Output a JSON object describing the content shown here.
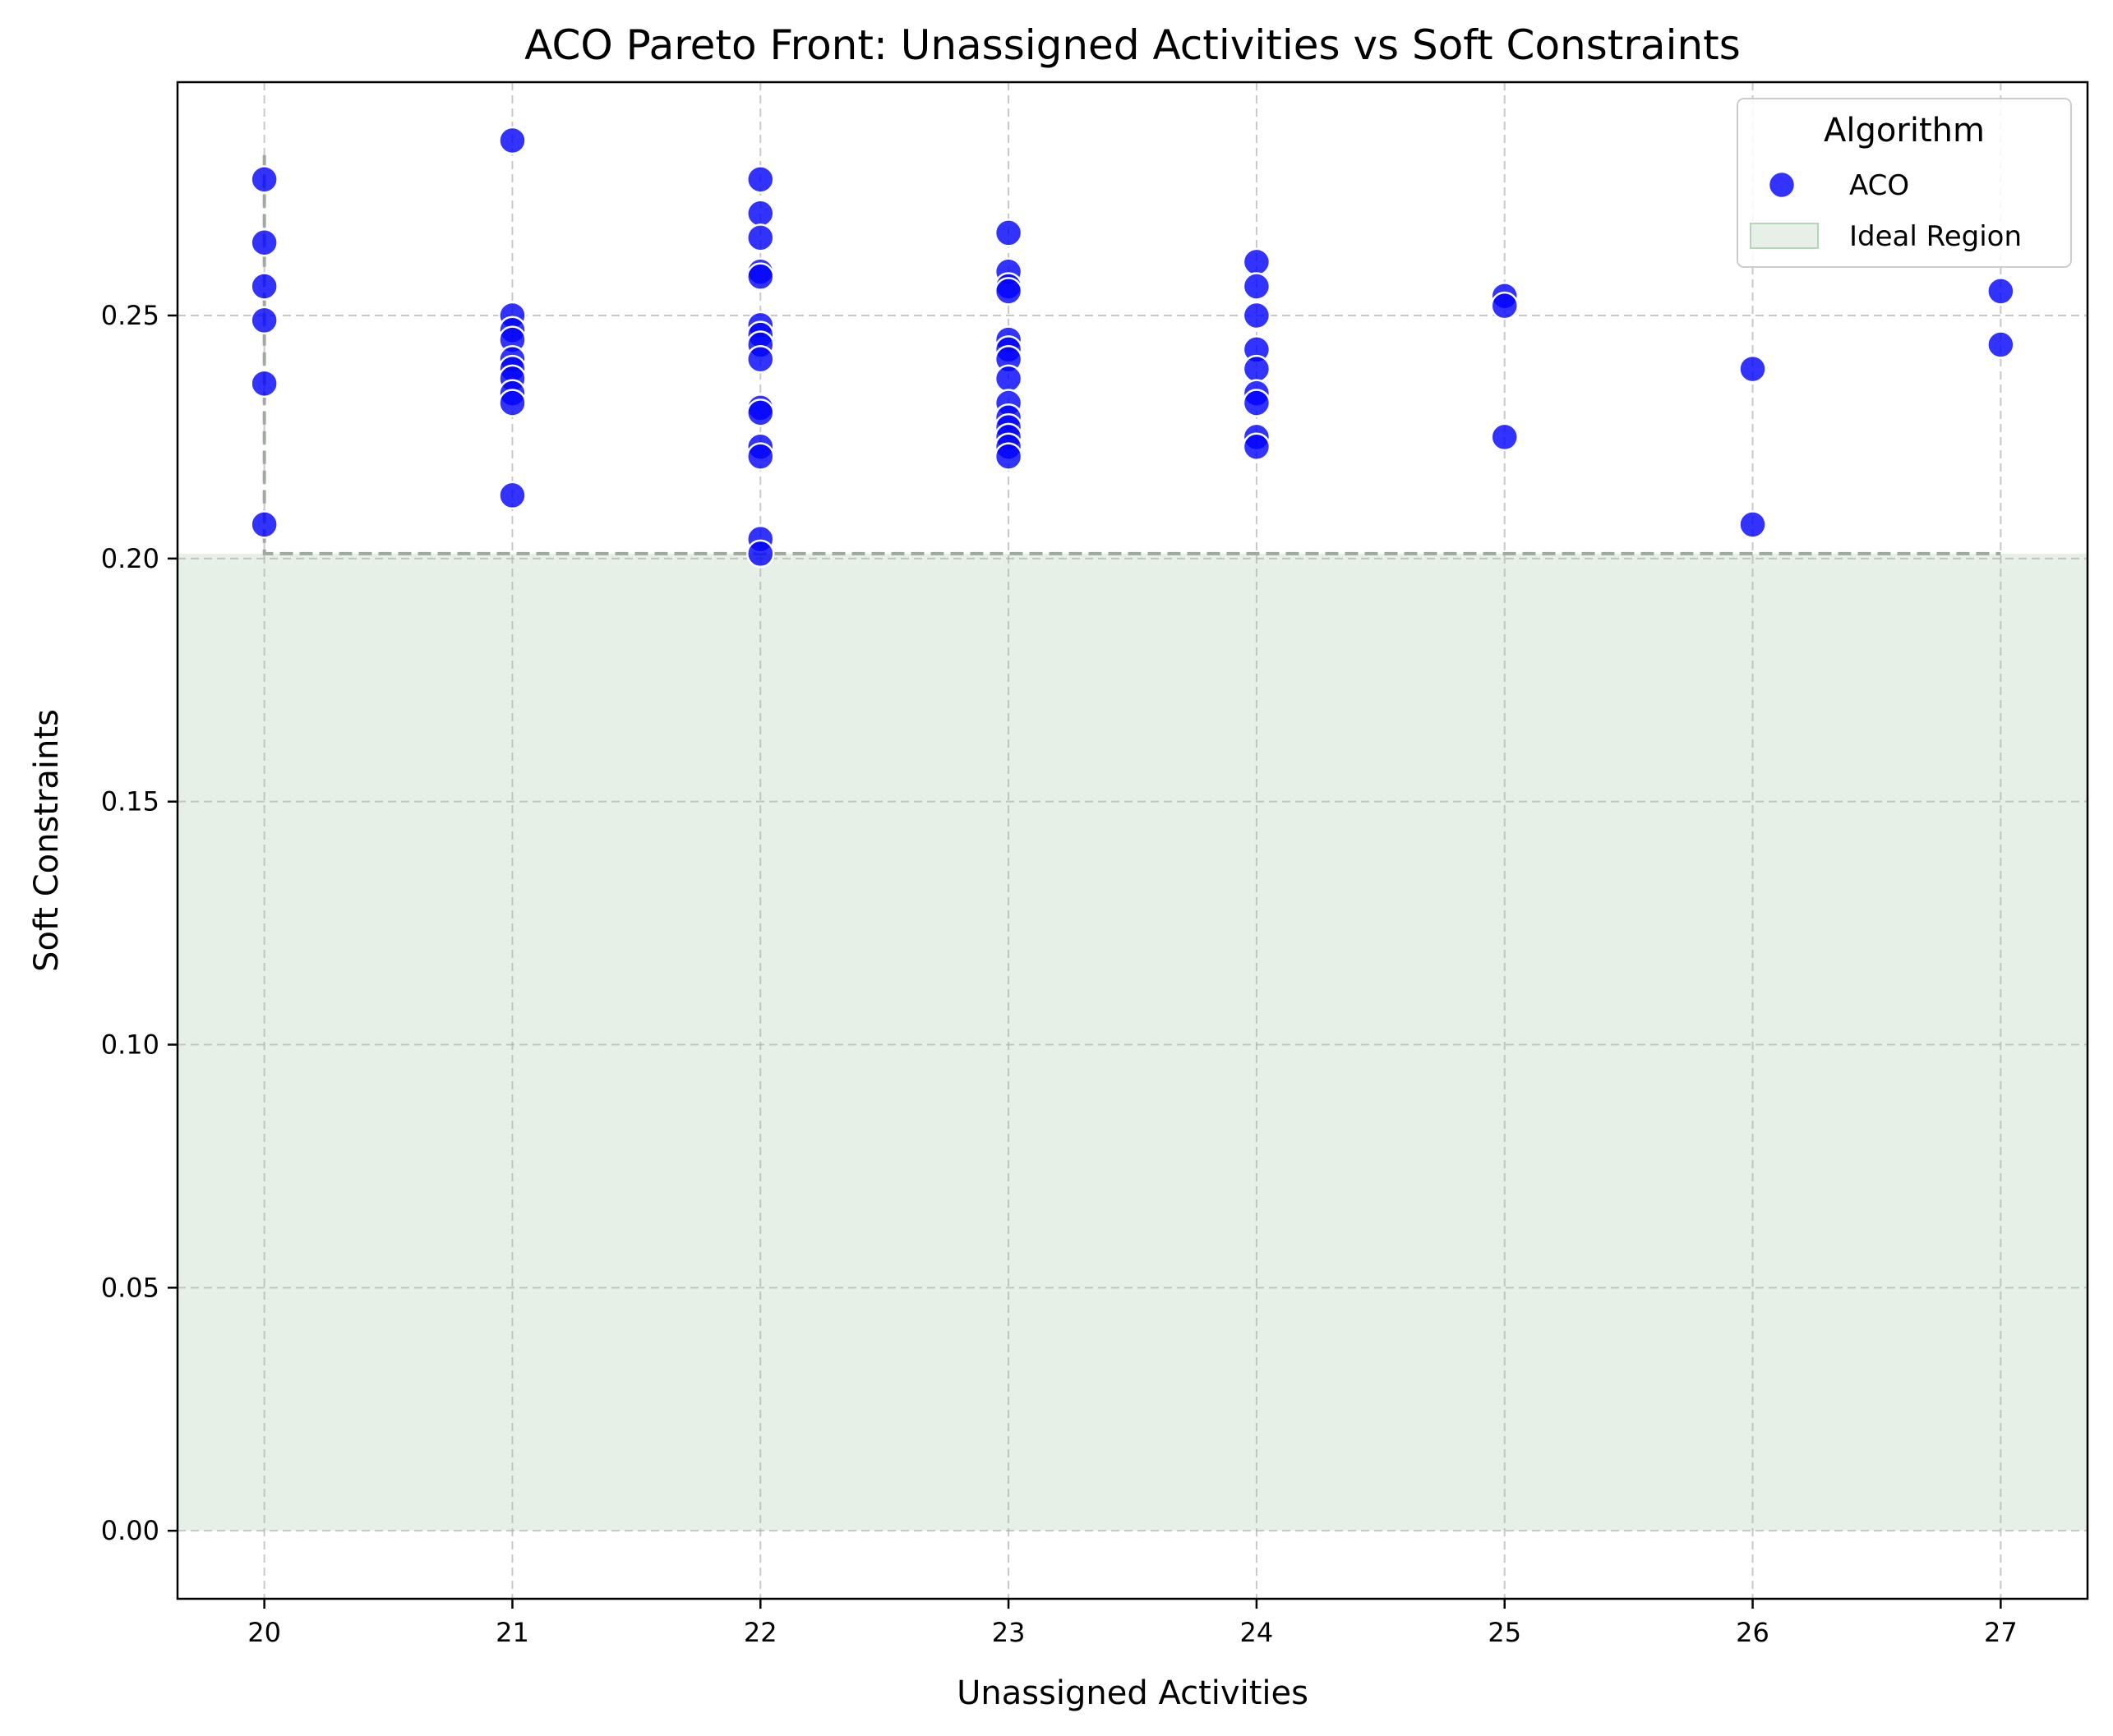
{
  "chart_data": {
    "type": "scatter",
    "title": "ACO Pareto Front: Unassigned Activities vs Soft Constraints",
    "xlabel": "Unassigned Activities",
    "ylabel": "Soft Constraints",
    "xlim": [
      19.65,
      27.35
    ],
    "ylim": [
      -0.014,
      0.298
    ],
    "xticks": [
      20,
      21,
      22,
      23,
      24,
      25,
      26,
      27
    ],
    "xtick_labels": [
      "20",
      "21",
      "22",
      "23",
      "24",
      "25",
      "26",
      "27"
    ],
    "yticks": [
      0.0,
      0.05,
      0.1,
      0.15,
      0.2,
      0.25
    ],
    "ytick_labels": [
      "0.00",
      "0.05",
      "0.10",
      "0.15",
      "0.20",
      "0.25"
    ],
    "grid": true,
    "legend": {
      "title": "Algorithm",
      "placement": "top-right",
      "entries": [
        "ACO",
        "Ideal Region"
      ]
    },
    "ideal_region": {
      "name": "Ideal Region",
      "y_from": 0.0,
      "y_to": 0.201,
      "color": "#e6f0e6"
    },
    "pareto_front": {
      "color": "#a0a8a0",
      "points": [
        {
          "x": 20,
          "y": 0.283
        },
        {
          "x": 20,
          "y": 0.201
        },
        {
          "x": 27,
          "y": 0.201
        }
      ]
    },
    "series": [
      {
        "name": "ACO",
        "color": "#0000ff",
        "points": [
          {
            "x": 20,
            "y": 0.278
          },
          {
            "x": 20,
            "y": 0.265
          },
          {
            "x": 20,
            "y": 0.256
          },
          {
            "x": 20,
            "y": 0.249
          },
          {
            "x": 20,
            "y": 0.236
          },
          {
            "x": 20,
            "y": 0.207
          },
          {
            "x": 21,
            "y": 0.286
          },
          {
            "x": 21,
            "y": 0.25
          },
          {
            "x": 21,
            "y": 0.247
          },
          {
            "x": 21,
            "y": 0.245
          },
          {
            "x": 21,
            "y": 0.241
          },
          {
            "x": 21,
            "y": 0.239
          },
          {
            "x": 21,
            "y": 0.237
          },
          {
            "x": 21,
            "y": 0.234
          },
          {
            "x": 21,
            "y": 0.232
          },
          {
            "x": 21,
            "y": 0.213
          },
          {
            "x": 22,
            "y": 0.278
          },
          {
            "x": 22,
            "y": 0.271
          },
          {
            "x": 22,
            "y": 0.266
          },
          {
            "x": 22,
            "y": 0.259
          },
          {
            "x": 22,
            "y": 0.258
          },
          {
            "x": 22,
            "y": 0.248
          },
          {
            "x": 22,
            "y": 0.246
          },
          {
            "x": 22,
            "y": 0.244
          },
          {
            "x": 22,
            "y": 0.241
          },
          {
            "x": 22,
            "y": 0.231
          },
          {
            "x": 22,
            "y": 0.23
          },
          {
            "x": 22,
            "y": 0.223
          },
          {
            "x": 22,
            "y": 0.221
          },
          {
            "x": 22,
            "y": 0.204
          },
          {
            "x": 22,
            "y": 0.201
          },
          {
            "x": 23,
            "y": 0.267
          },
          {
            "x": 23,
            "y": 0.259
          },
          {
            "x": 23,
            "y": 0.256
          },
          {
            "x": 23,
            "y": 0.255
          },
          {
            "x": 23,
            "y": 0.245
          },
          {
            "x": 23,
            "y": 0.243
          },
          {
            "x": 23,
            "y": 0.241
          },
          {
            "x": 23,
            "y": 0.237
          },
          {
            "x": 23,
            "y": 0.232
          },
          {
            "x": 23,
            "y": 0.229
          },
          {
            "x": 23,
            "y": 0.227
          },
          {
            "x": 23,
            "y": 0.225
          },
          {
            "x": 23,
            "y": 0.223
          },
          {
            "x": 23,
            "y": 0.221
          },
          {
            "x": 24,
            "y": 0.261
          },
          {
            "x": 24,
            "y": 0.256
          },
          {
            "x": 24,
            "y": 0.25
          },
          {
            "x": 24,
            "y": 0.243
          },
          {
            "x": 24,
            "y": 0.239
          },
          {
            "x": 24,
            "y": 0.234
          },
          {
            "x": 24,
            "y": 0.232
          },
          {
            "x": 24,
            "y": 0.225
          },
          {
            "x": 24,
            "y": 0.223
          },
          {
            "x": 25,
            "y": 0.254
          },
          {
            "x": 25,
            "y": 0.252
          },
          {
            "x": 25,
            "y": 0.225
          },
          {
            "x": 26,
            "y": 0.239
          },
          {
            "x": 26,
            "y": 0.207
          },
          {
            "x": 27,
            "y": 0.255
          },
          {
            "x": 27,
            "y": 0.244
          }
        ]
      }
    ]
  }
}
